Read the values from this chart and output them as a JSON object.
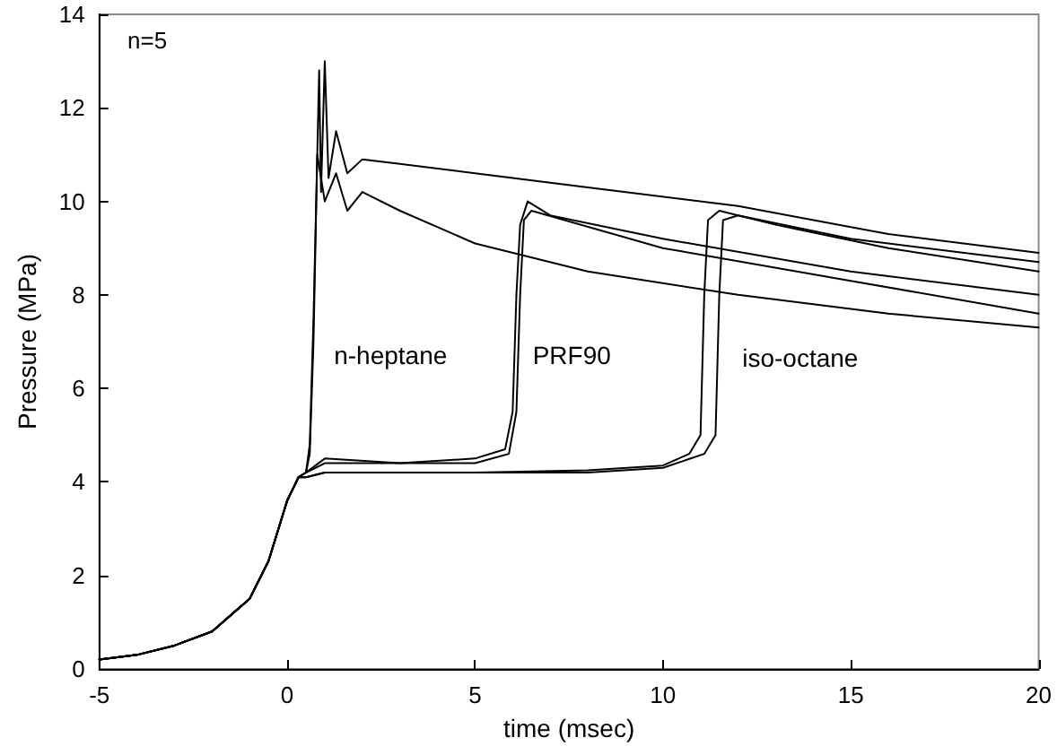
{
  "chart_data": {
    "type": "line",
    "xlabel": "time (msec)",
    "ylabel": "Pressure (MPa)",
    "xlim": [
      -5,
      20
    ],
    "xticks": [
      -5,
      0,
      5,
      10,
      15,
      20
    ],
    "ylim": [
      0,
      14
    ],
    "yticks": [
      0,
      2,
      4,
      6,
      8,
      10,
      12,
      14
    ],
    "marker": "none",
    "line_style": "solid",
    "annotations": [
      "n=5",
      "n-heptane",
      "PRF90",
      "iso-octane"
    ],
    "series": [
      {
        "color": "#000000",
        "x": [
          -5,
          -4,
          -3,
          -2,
          -1,
          -0.5,
          0,
          0.3,
          0.5,
          0.6,
          0.7,
          0.8,
          0.85,
          0.9,
          1.0,
          1.1,
          1.3,
          1.6,
          2,
          3,
          5,
          8,
          12,
          16,
          20
        ],
        "values": [
          0.2,
          0.3,
          0.5,
          0.8,
          1.5,
          2.3,
          3.6,
          4.1,
          4.2,
          4.6,
          7,
          11,
          12.8,
          10.2,
          13,
          10.5,
          11.5,
          10.6,
          10.9,
          10.8,
          10.6,
          10.3,
          9.9,
          9.3,
          8.9
        ]
      },
      {
        "color": "#000000",
        "x": [
          -5,
          -4,
          -3,
          -2,
          -1,
          -0.5,
          0,
          0.3,
          0.5,
          0.6,
          0.7,
          0.8,
          1.0,
          1.3,
          1.6,
          2,
          3,
          5,
          8,
          12,
          16,
          20
        ],
        "values": [
          0.2,
          0.3,
          0.5,
          0.8,
          1.5,
          2.3,
          3.6,
          4.1,
          4.2,
          4.8,
          7.5,
          11,
          10,
          10.6,
          9.8,
          10.2,
          9.8,
          9.1,
          8.5,
          8.0,
          7.6,
          7.3
        ]
      },
      {
        "color": "#000000",
        "x": [
          -5,
          -4,
          -3,
          -2,
          -1,
          -0.5,
          0,
          0.3,
          0.5,
          1,
          3,
          5,
          5.8,
          6.0,
          6.1,
          6.2,
          6.4,
          7,
          10,
          15,
          20
        ],
        "values": [
          0.2,
          0.3,
          0.5,
          0.8,
          1.5,
          2.3,
          3.6,
          4.1,
          4.2,
          4.5,
          4.4,
          4.5,
          4.7,
          5.5,
          8,
          9.5,
          10,
          9.7,
          9.2,
          8.5,
          8.0
        ]
      },
      {
        "color": "#000000",
        "x": [
          -5,
          -4,
          -3,
          -2,
          -1,
          -0.5,
          0,
          0.3,
          0.5,
          1,
          3,
          5,
          5.9,
          6.1,
          6.2,
          6.3,
          6.5,
          10,
          15,
          20
        ],
        "values": [
          0.2,
          0.3,
          0.5,
          0.8,
          1.5,
          2.3,
          3.6,
          4.1,
          4.2,
          4.4,
          4.4,
          4.4,
          4.6,
          5.5,
          8,
          9.6,
          9.8,
          9.0,
          8.3,
          7.6
        ]
      },
      {
        "color": "#000000",
        "x": [
          -5,
          -4,
          -3,
          -2,
          -1,
          -0.5,
          0,
          0.3,
          0.5,
          1,
          3,
          5,
          8,
          10,
          10.7,
          11.0,
          11.1,
          11.2,
          11.5,
          13,
          16,
          20
        ],
        "values": [
          0.2,
          0.3,
          0.5,
          0.8,
          1.5,
          2.3,
          3.6,
          4.1,
          4.1,
          4.2,
          4.2,
          4.2,
          4.25,
          4.35,
          4.6,
          5,
          8,
          9.6,
          9.8,
          9.5,
          9.0,
          8.5
        ]
      },
      {
        "color": "#000000",
        "x": [
          -5,
          -4,
          -3,
          -2,
          -1,
          -0.5,
          0,
          0.3,
          0.5,
          1,
          3,
          5,
          8,
          10,
          11.1,
          11.4,
          11.5,
          11.6,
          12,
          15,
          20
        ],
        "values": [
          0.2,
          0.3,
          0.5,
          0.8,
          1.5,
          2.3,
          3.6,
          4.1,
          4.1,
          4.2,
          4.2,
          4.2,
          4.2,
          4.3,
          4.6,
          5,
          8,
          9.6,
          9.7,
          9.2,
          8.7
        ]
      }
    ]
  }
}
